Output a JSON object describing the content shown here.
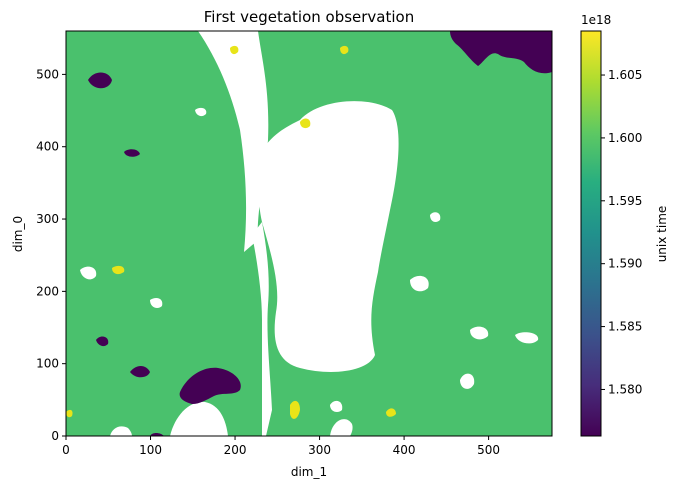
{
  "chart_data": {
    "type": "heatmap",
    "title": "First vegetation observation",
    "xlabel": "dim_1",
    "ylabel": "dim_0",
    "xlim": [
      0,
      575
    ],
    "ylim": [
      0,
      560
    ],
    "xticks": [
      0,
      100,
      200,
      300,
      400,
      500
    ],
    "yticks": [
      0,
      100,
      200,
      300,
      400,
      500
    ],
    "colorbar": {
      "label": "unix time",
      "offset_text": "1e18",
      "range": [
        1.5763,
        1.6085
      ],
      "ticks": [
        1.58,
        1.585,
        1.59,
        1.595,
        1.6,
        1.605
      ],
      "tick_labels": [
        "1.580",
        "1.585",
        "1.590",
        "1.595",
        "1.600",
        "1.605"
      ],
      "colormap": "viridis"
    },
    "dominant_value": 1.5995,
    "no_data_regions": [
      "central lake",
      "northern strip"
    ],
    "colors": {
      "dominant": "#4ac16d",
      "early": "#440154",
      "late": "#e8e419",
      "no_data": "#ffffff"
    }
  }
}
